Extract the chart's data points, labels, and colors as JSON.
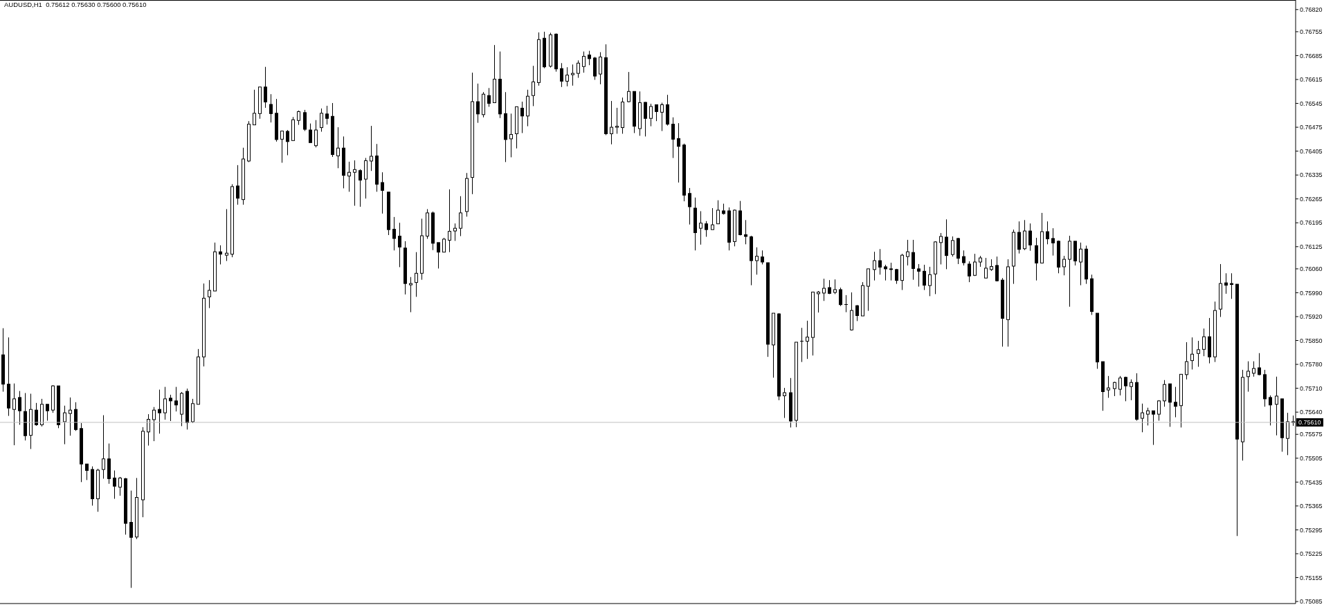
{
  "chart_data": {
    "type": "candlestick",
    "title": "AUDUSD,H1  0.75612 0.75630 0.75600 0.75610",
    "color": "#000000",
    "categories": [
      null,
      null,
      null,
      null,
      null,
      null,
      null,
      null,
      null,
      null,
      null,
      null,
      null,
      null,
      null,
      null,
      null,
      null,
      null,
      null,
      null,
      null,
      null,
      null,
      null,
      null,
      null,
      null,
      null,
      null,
      null,
      null,
      null,
      null,
      null,
      null,
      null,
      null,
      null,
      null,
      null,
      null,
      null,
      null,
      null,
      null,
      null,
      null,
      null,
      null,
      null,
      null,
      null,
      null,
      null,
      null,
      null,
      null,
      null,
      null,
      null,
      null,
      null,
      null,
      null,
      null,
      null,
      null,
      null,
      null,
      null,
      null,
      null,
      null,
      null,
      null,
      null,
      null,
      null,
      null,
      null,
      null,
      null,
      null,
      null,
      null,
      null,
      null,
      null,
      null,
      null,
      null,
      null,
      null,
      null,
      null,
      null,
      null,
      null,
      null,
      null,
      null,
      null,
      null,
      null,
      null,
      null,
      null,
      null,
      null,
      null,
      null,
      null,
      null,
      null,
      null,
      null,
      null,
      null,
      null,
      null,
      null,
      null,
      null,
      null,
      null,
      null,
      null,
      null,
      null,
      null,
      null,
      null,
      null,
      null,
      null,
      null,
      null,
      null,
      null,
      null,
      null,
      null,
      null,
      null,
      null,
      null,
      null,
      null,
      null,
      null,
      null,
      null,
      null,
      null,
      null,
      null,
      null,
      null,
      null,
      null,
      null,
      null,
      null,
      null,
      null,
      null,
      null,
      null,
      null,
      null,
      null,
      null,
      null,
      null,
      null,
      null,
      null,
      null,
      null,
      null,
      null,
      null,
      null,
      null,
      null,
      null,
      null,
      null,
      null,
      null,
      null,
      null,
      null,
      null,
      null,
      null,
      null,
      null,
      null,
      null,
      null,
      null,
      null,
      null,
      null,
      null,
      null,
      null,
      null,
      null,
      null,
      null,
      null,
      null,
      null,
      null,
      null,
      null,
      null,
      null,
      null,
      null,
      null,
      null,
      null,
      null,
      null,
      null,
      null,
      null,
      null
    ],
    "ohlc": [
      [
        0.75808,
        0.75886,
        0.757,
        0.75722
      ],
      [
        0.75722,
        0.75859,
        0.75629,
        0.75652
      ],
      [
        0.75648,
        0.75724,
        0.75543,
        0.75679
      ],
      [
        0.75683,
        0.75702,
        0.75603,
        0.75644
      ],
      [
        0.75642,
        0.75696,
        0.75557,
        0.75571
      ],
      [
        0.75572,
        0.75694,
        0.75532,
        0.75648
      ],
      [
        0.75646,
        0.75667,
        0.756,
        0.75603
      ],
      [
        0.75603,
        0.75679,
        0.75598,
        0.75663
      ],
      [
        0.75663,
        0.75663,
        0.75615,
        0.75644
      ],
      [
        0.75646,
        0.75719,
        0.75638,
        0.75717
      ],
      [
        0.75717,
        0.75717,
        0.75593,
        0.75603
      ],
      [
        0.75612,
        0.75659,
        0.75546,
        0.75638
      ],
      [
        0.75636,
        0.75683,
        0.75571,
        0.75646
      ],
      [
        0.75648,
        0.75669,
        0.75585,
        0.75589
      ],
      [
        0.75592,
        0.75608,
        0.75435,
        0.75488
      ],
      [
        0.75488,
        0.75488,
        0.75441,
        0.75469
      ],
      [
        0.75472,
        0.75481,
        0.75366,
        0.75386
      ],
      [
        0.75386,
        0.75474,
        0.75348,
        0.7547
      ],
      [
        0.75472,
        0.75631,
        0.75445,
        0.75503
      ],
      [
        0.75503,
        0.75548,
        0.7543,
        0.75445
      ],
      [
        0.75447,
        0.75469,
        0.75386,
        0.75423
      ],
      [
        0.7542,
        0.7545,
        0.75395,
        0.75447
      ],
      [
        0.75445,
        0.75447,
        0.75281,
        0.75314
      ],
      [
        0.75317,
        0.7541,
        0.75125,
        0.75273
      ],
      [
        0.75274,
        0.75447,
        0.75268,
        0.7539
      ],
      [
        0.75383,
        0.75596,
        0.75332,
        0.75584
      ],
      [
        0.75582,
        0.75634,
        0.75542,
        0.75619
      ],
      [
        0.75618,
        0.75655,
        0.75555,
        0.75646
      ],
      [
        0.75648,
        0.75706,
        0.75577,
        0.75638
      ],
      [
        0.75638,
        0.75714,
        0.75618,
        0.75679
      ],
      [
        0.75681,
        0.75691,
        0.75614,
        0.75673
      ],
      [
        0.75673,
        0.75714,
        0.75642,
        0.75661
      ],
      [
        0.75634,
        0.75699,
        0.75599,
        0.75695
      ],
      [
        0.75701,
        0.75709,
        0.75589,
        0.75609
      ],
      [
        0.75612,
        0.75679,
        0.75608,
        0.75665
      ],
      [
        0.75663,
        0.75825,
        0.75663,
        0.75802
      ],
      [
        0.75802,
        0.76017,
        0.75774,
        0.75974
      ],
      [
        0.75978,
        0.76027,
        0.75945,
        0.75997
      ],
      [
        0.75995,
        0.76137,
        0.75995,
        0.7611
      ],
      [
        0.7611,
        0.76129,
        0.76073,
        0.76103
      ],
      [
        0.761,
        0.76235,
        0.76083,
        0.76106
      ],
      [
        0.76103,
        0.76308,
        0.76094,
        0.76301
      ],
      [
        0.76303,
        0.76364,
        0.76248,
        0.76267
      ],
      [
        0.76263,
        0.76415,
        0.76248,
        0.76382
      ],
      [
        0.76376,
        0.76493,
        0.76373,
        0.76484
      ],
      [
        0.76482,
        0.76585,
        0.76482,
        0.76516
      ],
      [
        0.76515,
        0.76593,
        0.765,
        0.76593
      ],
      [
        0.76593,
        0.76652,
        0.76532,
        0.76549
      ],
      [
        0.76542,
        0.76572,
        0.76489,
        0.76515
      ],
      [
        0.76516,
        0.76558,
        0.76433,
        0.76439
      ],
      [
        0.7644,
        0.76464,
        0.76371,
        0.76464
      ],
      [
        0.76463,
        0.76467,
        0.76393,
        0.76433
      ],
      [
        0.76436,
        0.76505,
        0.76436,
        0.76497
      ],
      [
        0.76495,
        0.76524,
        0.76482,
        0.76521
      ],
      [
        0.76518,
        0.76526,
        0.76464,
        0.76469
      ],
      [
        0.76467,
        0.76486,
        0.7643,
        0.7643
      ],
      [
        0.76421,
        0.76496,
        0.76416,
        0.76467
      ],
      [
        0.76474,
        0.7653,
        0.76462,
        0.76516
      ],
      [
        0.76514,
        0.76538,
        0.76483,
        0.76501
      ],
      [
        0.76507,
        0.76546,
        0.76388,
        0.76395
      ],
      [
        0.76391,
        0.76475,
        0.76355,
        0.76414
      ],
      [
        0.76414,
        0.76448,
        0.76296,
        0.76334
      ],
      [
        0.76332,
        0.76374,
        0.76286,
        0.76343
      ],
      [
        0.76343,
        0.76378,
        0.76245,
        0.76351
      ],
      [
        0.76348,
        0.76352,
        0.76242,
        0.7632
      ],
      [
        0.76323,
        0.76385,
        0.76266,
        0.76377
      ],
      [
        0.76376,
        0.76479,
        0.76347,
        0.7639
      ],
      [
        0.76391,
        0.76426,
        0.76286,
        0.76308
      ],
      [
        0.76313,
        0.76343,
        0.76222,
        0.7629
      ],
      [
        0.76285,
        0.76285,
        0.76159,
        0.76175
      ],
      [
        0.76176,
        0.76212,
        0.76114,
        0.76149
      ],
      [
        0.76156,
        0.76195,
        0.76065,
        0.76124
      ],
      [
        0.76121,
        0.76141,
        0.75985,
        0.76017
      ],
      [
        0.76013,
        0.76036,
        0.75933,
        0.76017
      ],
      [
        0.7602,
        0.76109,
        0.75978,
        0.76047
      ],
      [
        0.76047,
        0.76207,
        0.76028,
        0.76157
      ],
      [
        0.76156,
        0.76235,
        0.76148,
        0.76224
      ],
      [
        0.76224,
        0.76228,
        0.76115,
        0.76135
      ],
      [
        0.76137,
        0.76137,
        0.76061,
        0.76109
      ],
      [
        0.76109,
        0.76151,
        0.76109,
        0.76147
      ],
      [
        0.76144,
        0.76293,
        0.76109,
        0.7617
      ],
      [
        0.76171,
        0.76193,
        0.76142,
        0.76179
      ],
      [
        0.76179,
        0.76273,
        0.76156,
        0.76224
      ],
      [
        0.76228,
        0.76341,
        0.76213,
        0.76325
      ],
      [
        0.76328,
        0.76635,
        0.76279,
        0.7655
      ],
      [
        0.7655,
        0.76603,
        0.76488,
        0.76514
      ],
      [
        0.76512,
        0.76578,
        0.76504,
        0.76572
      ],
      [
        0.76568,
        0.7659,
        0.76535,
        0.76545
      ],
      [
        0.76547,
        0.76716,
        0.76547,
        0.76616
      ],
      [
        0.76616,
        0.76697,
        0.76502,
        0.76514
      ],
      [
        0.76515,
        0.76578,
        0.76373,
        0.76439
      ],
      [
        0.76441,
        0.76515,
        0.76387,
        0.76454
      ],
      [
        0.76456,
        0.76535,
        0.76413,
        0.76535
      ],
      [
        0.76531,
        0.7655,
        0.76458,
        0.76508
      ],
      [
        0.76508,
        0.76585,
        0.76478,
        0.76566
      ],
      [
        0.76568,
        0.76655,
        0.76537,
        0.76608
      ],
      [
        0.76606,
        0.76753,
        0.76597,
        0.76732
      ],
      [
        0.76736,
        0.76755,
        0.76648,
        0.76652
      ],
      [
        0.76654,
        0.76752,
        0.7665,
        0.76746
      ],
      [
        0.76748,
        0.7675,
        0.76638,
        0.76646
      ],
      [
        0.76647,
        0.76663,
        0.76593,
        0.7661
      ],
      [
        0.7661,
        0.76651,
        0.76595,
        0.76628
      ],
      [
        0.76629,
        0.76659,
        0.76597,
        0.76633
      ],
      [
        0.76633,
        0.76671,
        0.7662,
        0.76663
      ],
      [
        0.76653,
        0.76697,
        0.76635,
        0.76683
      ],
      [
        0.76687,
        0.76699,
        0.76657,
        0.76676
      ],
      [
        0.76678,
        0.76681,
        0.76614,
        0.76625
      ],
      [
        0.76631,
        0.76695,
        0.76601,
        0.76681
      ],
      [
        0.76679,
        0.76718,
        0.76452,
        0.76456
      ],
      [
        0.76456,
        0.76552,
        0.76425,
        0.76475
      ],
      [
        0.76475,
        0.76532,
        0.76456,
        0.76478
      ],
      [
        0.76474,
        0.76562,
        0.76456,
        0.76549
      ],
      [
        0.7655,
        0.76637,
        0.76548,
        0.7658
      ],
      [
        0.7658,
        0.7658,
        0.76458,
        0.76478
      ],
      [
        0.76471,
        0.7658,
        0.7645,
        0.76547
      ],
      [
        0.76548,
        0.76549,
        0.76448,
        0.76501
      ],
      [
        0.76501,
        0.76544,
        0.76478,
        0.76536
      ],
      [
        0.76541,
        0.76541,
        0.76493,
        0.76521
      ],
      [
        0.76519,
        0.76547,
        0.76464,
        0.76541
      ],
      [
        0.76541,
        0.7657,
        0.7648,
        0.76484
      ],
      [
        0.76484,
        0.76504,
        0.76385,
        0.7644
      ],
      [
        0.76442,
        0.76487,
        0.76313,
        0.76419
      ],
      [
        0.76423,
        0.76427,
        0.76258,
        0.76276
      ],
      [
        0.76281,
        0.76297,
        0.7619,
        0.76242
      ],
      [
        0.76238,
        0.76269,
        0.76114,
        0.76166
      ],
      [
        0.76179,
        0.76229,
        0.76131,
        0.76194
      ],
      [
        0.76192,
        0.762,
        0.76154,
        0.76175
      ],
      [
        0.76175,
        0.76238,
        0.76175,
        0.76189
      ],
      [
        0.76192,
        0.76261,
        0.76192,
        0.76232
      ],
      [
        0.7623,
        0.76251,
        0.76219,
        0.76222
      ],
      [
        0.7623,
        0.7624,
        0.76114,
        0.76138
      ],
      [
        0.7614,
        0.76234,
        0.76126,
        0.76232
      ],
      [
        0.7623,
        0.76259,
        0.76158,
        0.7616
      ],
      [
        0.7616,
        0.76203,
        0.76132,
        0.76155
      ],
      [
        0.76154,
        0.76157,
        0.76012,
        0.76084
      ],
      [
        0.76084,
        0.76123,
        0.76043,
        0.76097
      ],
      [
        0.76095,
        0.76114,
        0.76073,
        0.7608
      ],
      [
        0.76078,
        0.76078,
        0.75802,
        0.75839
      ],
      [
        0.75837,
        0.7593,
        0.75741,
        0.7593
      ],
      [
        0.75928,
        0.7593,
        0.75675,
        0.75687
      ],
      [
        0.75688,
        0.75711,
        0.75623,
        0.75697
      ],
      [
        0.75697,
        0.7574,
        0.75595,
        0.75614
      ],
      [
        0.75616,
        0.75845,
        0.75596,
        0.75845
      ],
      [
        0.75848,
        0.75887,
        0.75787,
        0.75848
      ],
      [
        0.75848,
        0.75908,
        0.75796,
        0.7586
      ],
      [
        0.75859,
        0.75992,
        0.75806,
        0.75992
      ],
      [
        0.75987,
        0.75995,
        0.75932,
        0.75992
      ],
      [
        0.75989,
        0.76031,
        0.75966,
        0.76003
      ],
      [
        0.76005,
        0.76027,
        0.75986,
        0.75988
      ],
      [
        0.75991,
        0.76029,
        0.75986,
        0.75999
      ],
      [
        0.75999,
        0.76005,
        0.75951,
        0.75955
      ],
      [
        0.75956,
        0.75983,
        0.75933,
        0.75956
      ],
      [
        0.75881,
        0.75991,
        0.75879,
        0.75938
      ],
      [
        0.75952,
        0.75954,
        0.75907,
        0.75923
      ],
      [
        0.75922,
        0.76021,
        0.75922,
        0.76011
      ],
      [
        0.76009,
        0.7606,
        0.75937,
        0.7606
      ],
      [
        0.76058,
        0.7611,
        0.76026,
        0.76084
      ],
      [
        0.76084,
        0.76118,
        0.76043,
        0.76065
      ],
      [
        0.76066,
        0.76072,
        0.76026,
        0.7606
      ],
      [
        0.7606,
        0.76078,
        0.76026,
        0.76058
      ],
      [
        0.76058,
        0.7606,
        0.76016,
        0.76026
      ],
      [
        0.76026,
        0.76104,
        0.75998,
        0.761
      ],
      [
        0.76096,
        0.76145,
        0.7607,
        0.7611
      ],
      [
        0.76108,
        0.76145,
        0.76028,
        0.76061
      ],
      [
        0.7606,
        0.76074,
        0.76008,
        0.76053
      ],
      [
        0.76053,
        0.76072,
        0.75998,
        0.76012
      ],
      [
        0.76011,
        0.76066,
        0.7598,
        0.76043
      ],
      [
        0.76045,
        0.76141,
        0.75986,
        0.76139
      ],
      [
        0.76137,
        0.76165,
        0.76073,
        0.76155
      ],
      [
        0.76153,
        0.76205,
        0.76059,
        0.76099
      ],
      [
        0.76102,
        0.76155,
        0.76096,
        0.76143
      ],
      [
        0.76149,
        0.76151,
        0.76074,
        0.76091
      ],
      [
        0.76096,
        0.76114,
        0.7607,
        0.76078
      ],
      [
        0.76074,
        0.76082,
        0.76021,
        0.76039
      ],
      [
        0.76041,
        0.76104,
        0.76039,
        0.7608
      ],
      [
        0.7608,
        0.76098,
        0.76066,
        0.76092
      ],
      [
        0.76033,
        0.76092,
        0.76033,
        0.76062
      ],
      [
        0.76058,
        0.76088,
        0.76054,
        0.76067
      ],
      [
        0.7607,
        0.76096,
        0.76023,
        0.76025
      ],
      [
        0.76027,
        0.76033,
        0.75832,
        0.75915
      ],
      [
        0.75911,
        0.76088,
        0.75832,
        0.76066
      ],
      [
        0.76068,
        0.76175,
        0.76016,
        0.76167
      ],
      [
        0.76167,
        0.76199,
        0.76105,
        0.76117
      ],
      [
        0.76119,
        0.76203,
        0.76115,
        0.76171
      ],
      [
        0.76171,
        0.76193,
        0.76113,
        0.7613
      ],
      [
        0.76128,
        0.76151,
        0.76026,
        0.76077
      ],
      [
        0.76077,
        0.76224,
        0.76077,
        0.76169
      ],
      [
        0.76169,
        0.76199,
        0.76132,
        0.76148
      ],
      [
        0.76149,
        0.76179,
        0.76099,
        0.76136
      ],
      [
        0.76141,
        0.76143,
        0.76047,
        0.76065
      ],
      [
        0.76066,
        0.76098,
        0.76041,
        0.76088
      ],
      [
        0.76088,
        0.76157,
        0.75949,
        0.76141
      ],
      [
        0.76141,
        0.76141,
        0.7607,
        0.76083
      ],
      [
        0.7608,
        0.76137,
        0.76012,
        0.76118
      ],
      [
        0.76118,
        0.76128,
        0.76016,
        0.7603
      ],
      [
        0.76031,
        0.76043,
        0.75925,
        0.75935
      ],
      [
        0.7593,
        0.7593,
        0.75767,
        0.75787
      ],
      [
        0.75788,
        0.75788,
        0.75644,
        0.757
      ],
      [
        0.75705,
        0.75746,
        0.75682,
        0.75711
      ],
      [
        0.75709,
        0.75729,
        0.75687,
        0.75727
      ],
      [
        0.75707,
        0.75746,
        0.75689,
        0.7574
      ],
      [
        0.75742,
        0.75744,
        0.75672,
        0.75717
      ],
      [
        0.75715,
        0.75736,
        0.75675,
        0.75727
      ],
      [
        0.75727,
        0.75754,
        0.75615,
        0.75619
      ],
      [
        0.75622,
        0.75665,
        0.75581,
        0.75638
      ],
      [
        0.75634,
        0.75653,
        0.75601,
        0.75644
      ],
      [
        0.75644,
        0.75644,
        0.75544,
        0.75634
      ],
      [
        0.75634,
        0.75675,
        0.75615,
        0.75673
      ],
      [
        0.75673,
        0.75734,
        0.75656,
        0.75721
      ],
      [
        0.75723,
        0.75723,
        0.75597,
        0.75669
      ],
      [
        0.75669,
        0.75714,
        0.75625,
        0.75657
      ],
      [
        0.75659,
        0.75751,
        0.75595,
        0.75751
      ],
      [
        0.7575,
        0.75845,
        0.75736,
        0.75788
      ],
      [
        0.75791,
        0.75859,
        0.75765,
        0.7581
      ],
      [
        0.75812,
        0.75849,
        0.75773,
        0.75823
      ],
      [
        0.75824,
        0.75885,
        0.75804,
        0.75861
      ],
      [
        0.75861,
        0.75916,
        0.75783,
        0.75802
      ],
      [
        0.75802,
        0.75964,
        0.75787,
        0.75938
      ],
      [
        0.75942,
        0.76074,
        0.75919,
        0.76017
      ],
      [
        0.76019,
        0.76047,
        0.75987,
        0.76012
      ],
      [
        0.76017,
        0.76047,
        0.75972,
        0.76014
      ],
      [
        0.76015,
        0.76015,
        0.75277,
        0.75561
      ],
      [
        0.75553,
        0.75764,
        0.75498,
        0.75742
      ],
      [
        0.75744,
        0.75789,
        0.757,
        0.7576
      ],
      [
        0.75754,
        0.75789,
        0.75744,
        0.75768
      ],
      [
        0.7577,
        0.75813,
        0.75748,
        0.7575
      ],
      [
        0.7575,
        0.75764,
        0.75656,
        0.75679
      ],
      [
        0.75683,
        0.75689,
        0.75601,
        0.75661
      ],
      [
        0.75663,
        0.75744,
        0.75572,
        0.75687
      ],
      [
        0.75679,
        0.75679,
        0.75524,
        0.75565
      ],
      [
        0.75563,
        0.75638,
        0.75514,
        0.75612
      ],
      [
        0.75612,
        0.7563,
        0.756,
        0.7561
      ]
    ],
    "ylim": [
      0.75079,
      0.76848
    ],
    "yticks": [
      {
        "value": 0.7682,
        "label": "0.76820"
      },
      {
        "value": 0.76755,
        "label": "0.76755"
      },
      {
        "value": 0.76685,
        "label": "0.76685"
      },
      {
        "value": 0.76615,
        "label": "0.76615"
      },
      {
        "value": 0.76545,
        "label": "0.76545"
      },
      {
        "value": 0.76475,
        "label": "0.76475"
      },
      {
        "value": 0.76405,
        "label": "0.76405"
      },
      {
        "value": 0.76335,
        "label": "0.76335"
      },
      {
        "value": 0.76265,
        "label": "0.76265"
      },
      {
        "value": 0.76195,
        "label": "0.76195"
      },
      {
        "value": 0.76125,
        "label": "0.76125"
      },
      {
        "value": 0.7606,
        "label": "0.76060"
      },
      {
        "value": 0.7599,
        "label": "0.75990"
      },
      {
        "value": 0.7592,
        "label": "0.75920"
      },
      {
        "value": 0.7585,
        "label": "0.75850"
      },
      {
        "value": 0.7578,
        "label": "0.75780"
      },
      {
        "value": 0.7571,
        "label": "0.75710"
      },
      {
        "value": 0.7564,
        "label": "0.75640"
      },
      {
        "value": 0.75575,
        "label": "0.75575"
      },
      {
        "value": 0.75505,
        "label": "0.75505"
      },
      {
        "value": 0.75435,
        "label": "0.75435"
      },
      {
        "value": 0.75365,
        "label": "0.75365"
      },
      {
        "value": 0.75295,
        "label": "0.75295"
      },
      {
        "value": 0.75225,
        "label": "0.75225"
      },
      {
        "value": 0.75155,
        "label": "0.75155"
      },
      {
        "value": 0.75085,
        "label": "0.75085"
      }
    ],
    "ref_lines": [
      {
        "axis": "y",
        "value": 0.7561,
        "label": "0.75610",
        "color": "#c0c0c0"
      }
    ],
    "tick_labels": "y"
  }
}
